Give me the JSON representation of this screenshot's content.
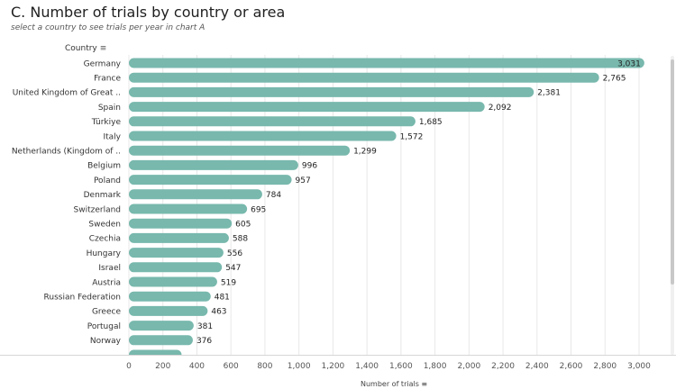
{
  "header": {
    "title": "C. Number of trials by country or area",
    "subtitle": "select a country to see trials per year in chart A",
    "column_header": "Country"
  },
  "colors": {
    "bar": "#78b8ad",
    "grid": "#e8e8e8",
    "text": "#333333"
  },
  "chart_data": {
    "type": "bar",
    "orientation": "horizontal",
    "title": "C. Number of trials by country or area",
    "xlabel": "Number of trials",
    "ylabel": "Country",
    "xlim": [
      0,
      3100
    ],
    "xticks": [
      0,
      200,
      400,
      600,
      800,
      1000,
      1200,
      1400,
      1600,
      1800,
      2000,
      2200,
      2400,
      2600,
      2800,
      3000
    ],
    "xtick_labels": [
      "0",
      "200",
      "400",
      "600",
      "800",
      "1,000",
      "1,200",
      "1,400",
      "1,600",
      "1,800",
      "2,000",
      "2,200",
      "2,400",
      "2,600",
      "2,800",
      "3,000"
    ],
    "grid": true,
    "categories": [
      "Germany",
      "France",
      "United Kingdom of Great ..",
      "Spain",
      "Türkiye",
      "Italy",
      "Netherlands (Kingdom of ..",
      "Belgium",
      "Poland",
      "Denmark",
      "Switzerland",
      "Sweden",
      "Czechia",
      "Hungary",
      "Israel",
      "Austria",
      "Russian Federation",
      "Greece",
      "Portugal",
      "Norway",
      ""
    ],
    "values": [
      3031,
      2765,
      2381,
      2092,
      1685,
      1572,
      1299,
      996,
      957,
      784,
      695,
      605,
      588,
      556,
      547,
      519,
      481,
      463,
      381,
      376,
      310
    ],
    "value_labels": [
      "3,031",
      "2,765",
      "2,381",
      "2,092",
      "1,685",
      "1,572",
      "1,299",
      "996",
      "957",
      "784",
      "695",
      "605",
      "588",
      "556",
      "547",
      "519",
      "481",
      "463",
      "381",
      "376",
      ""
    ]
  }
}
